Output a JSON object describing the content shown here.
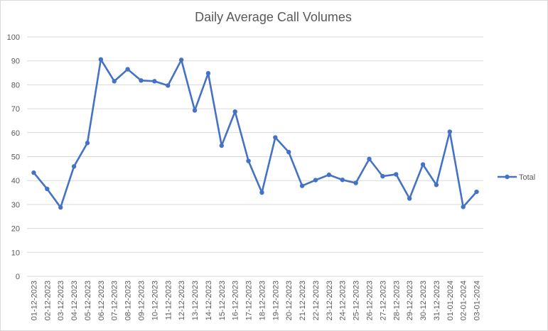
{
  "chart_data": {
    "type": "line",
    "title": "Daily Average Call Volumes",
    "xlabel": "",
    "ylabel": "",
    "ylim": [
      0,
      100
    ],
    "yticks": [
      0,
      10,
      20,
      30,
      40,
      50,
      60,
      70,
      80,
      90,
      100
    ],
    "grid": "horizontal",
    "legend_position": "right",
    "categories": [
      "01-12-2023",
      "02-12-2023",
      "03-12-2023",
      "04-12-2023",
      "05-12-2023",
      "06-12-2023",
      "07-12-2023",
      "08-12-2023",
      "09-12-2023",
      "10-12-2023",
      "11-12-2023",
      "12-12-2023",
      "13-12-2023",
      "14-12-2023",
      "15-12-2023",
      "16-12-2023",
      "17-12-2023",
      "18-12-2023",
      "19-12-2023",
      "20-12-2023",
      "21-12-2023",
      "22-12-2023",
      "23-12-2023",
      "24-12-2023",
      "25-12-2023",
      "26-12-2023",
      "27-12-2023",
      "28-12-2023",
      "29-12-2023",
      "30-12-2023",
      "31-12-2023",
      "01-01-2024",
      "02-01-2024",
      "03-01-2024"
    ],
    "series": [
      {
        "name": "Total",
        "color": "#4472c4",
        "values": [
          43.3,
          36.5,
          28.8,
          45.9,
          55.7,
          90.6,
          81.5,
          86.5,
          81.8,
          81.5,
          79.7,
          90.4,
          69.3,
          84.8,
          54.6,
          68.8,
          48.2,
          35.0,
          58.0,
          51.9,
          37.8,
          40.2,
          42.4,
          40.3,
          39.0,
          49.0,
          41.8,
          42.6,
          32.5,
          46.7,
          38.2,
          60.4,
          29.0,
          35.3
        ]
      }
    ]
  }
}
